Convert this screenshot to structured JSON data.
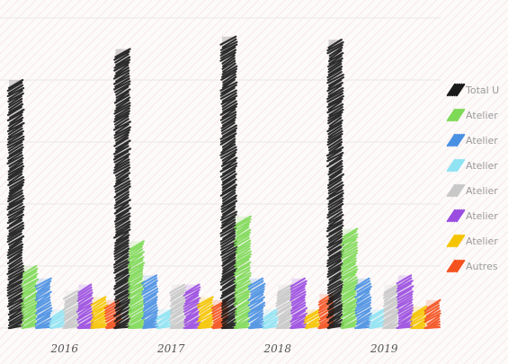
{
  "chart_data": {
    "type": "bar",
    "style": "sketch",
    "title": "",
    "xlabel": "",
    "ylabel": "",
    "categories": [
      "2016",
      "2017",
      "2018",
      "2019"
    ],
    "ylim": [
      0,
      100
    ],
    "grid": true,
    "legend_position": "right",
    "series": [
      {
        "name": "Total U",
        "color": "#1a1a1a",
        "values": [
          80,
          90,
          94,
          93
        ]
      },
      {
        "name": "Atelier",
        "color": "#7ed957",
        "values": [
          20,
          28,
          36,
          32
        ]
      },
      {
        "name": "Atelier",
        "color": "#4a90e2",
        "values": [
          16,
          17,
          16,
          16
        ]
      },
      {
        "name": "Atelier",
        "color": "#8fe3f3",
        "values": [
          6,
          6,
          6,
          6
        ]
      },
      {
        "name": "Atelier",
        "color": "#c8c8c8",
        "values": [
          12,
          14,
          14,
          14
        ]
      },
      {
        "name": "Atelier",
        "color": "#9b4de0",
        "values": [
          14,
          14,
          16,
          17
        ]
      },
      {
        "name": "Atelier",
        "color": "#f5c400",
        "values": [
          10,
          10,
          6,
          7
        ]
      },
      {
        "name": "Autres",
        "color": "#f4511e",
        "values": [
          9,
          9,
          11,
          9
        ]
      }
    ]
  }
}
